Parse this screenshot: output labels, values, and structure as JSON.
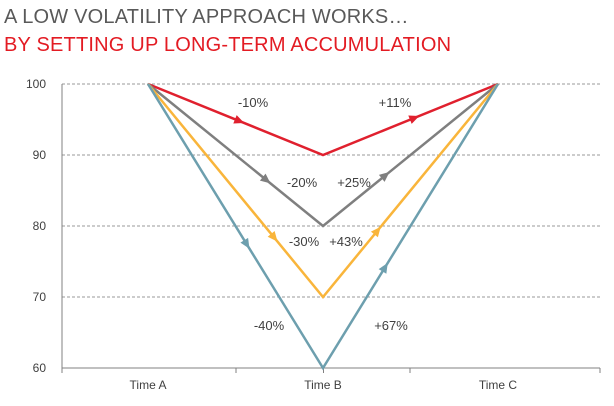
{
  "title_line1": "A LOW VOLATILITY APPROACH WORKS…",
  "title_line2": "BY SETTING UP LONG-TERM ACCUMULATION",
  "colors": {
    "title1": "#595959",
    "title2": "#e31b23",
    "grid": "#999999",
    "axis": "#808080",
    "text": "#404040"
  },
  "chart_data": {
    "type": "line",
    "categories": [
      "Time A",
      "Time B",
      "Time C"
    ],
    "ylim": [
      60,
      100
    ],
    "yticks": [
      60,
      70,
      80,
      90,
      100
    ],
    "grid": true,
    "series": [
      {
        "values": [
          100,
          90,
          100
        ],
        "color": "#e0202e",
        "down_label": "-10%",
        "up_label": "+11%"
      },
      {
        "values": [
          100,
          80,
          100
        ],
        "color": "#7f7f7f",
        "down_label": "-20%",
        "up_label": "+25%"
      },
      {
        "values": [
          100,
          70,
          100
        ],
        "color": "#f9b53b",
        "down_label": "-30%",
        "up_label": "+43%"
      },
      {
        "values": [
          100,
          60,
          100
        ],
        "color": "#6d9fae",
        "down_label": "-40%",
        "up_label": "+67%"
      }
    ]
  }
}
